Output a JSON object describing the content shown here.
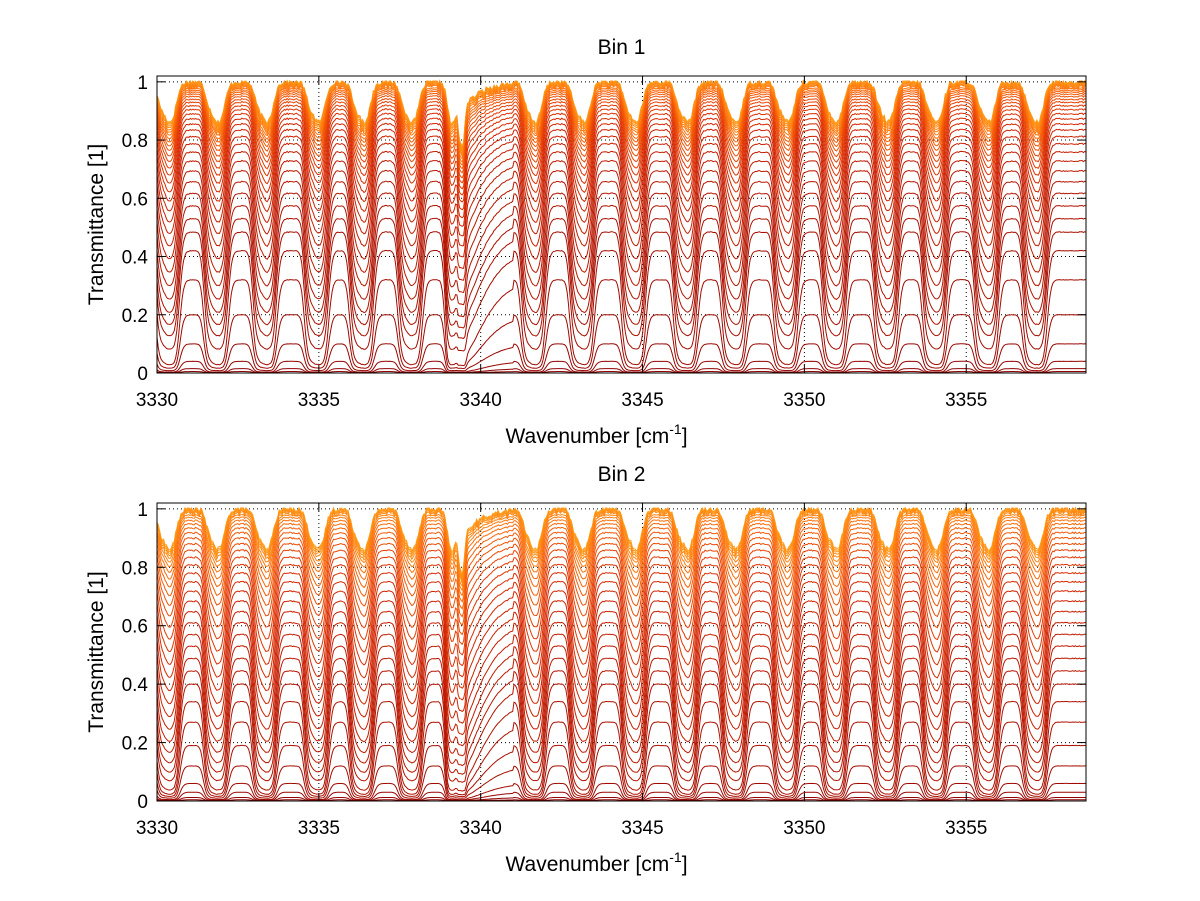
{
  "chart_data": [
    {
      "type": "line",
      "title": "Bin 1",
      "xlabel": "Wavenumber [cm",
      "xlabel_sup": "-1",
      "xlabel_tail": "]",
      "ylabel": "Transmittance [1]",
      "xlim": [
        3330,
        3358.7
      ],
      "ylim": [
        0,
        1.02
      ],
      "xticks": [
        "3330",
        "3335",
        "3340",
        "3345",
        "3350",
        "3355"
      ],
      "xtick_values": [
        3330,
        3335,
        3340,
        3345,
        3350,
        3355
      ],
      "yticks": [
        "0",
        "0.2",
        "0.4",
        "0.6",
        "0.8",
        "1"
      ],
      "ytick_values": [
        0,
        0.2,
        0.4,
        0.6,
        0.8,
        1
      ],
      "grid": true,
      "line_positions": [
        3330.4,
        3331.9,
        3333.4,
        3335.0,
        3336.4,
        3337.9,
        3339.4,
        3341.7,
        3343.2,
        3344.8,
        3346.4,
        3347.9,
        3349.5,
        3351.0,
        3352.6,
        3354.1,
        3355.7,
        3357.2
      ],
      "series_continuum": [
        1.0,
        0.998,
        0.996,
        0.993,
        0.99,
        0.986,
        0.982,
        0.977,
        0.971,
        0.965,
        0.958,
        0.95,
        0.94,
        0.93,
        0.918,
        0.905,
        0.89,
        0.873,
        0.855,
        0.835,
        0.812,
        0.787,
        0.759,
        0.728,
        0.694,
        0.657,
        0.617,
        0.574,
        0.53,
        0.484,
        0.42,
        0.32,
        0.2,
        0.1,
        0.04,
        0.015,
        0.005
      ],
      "series_colors": [
        "#ffa020",
        "#ff9a1c",
        "#ff9418",
        "#ff8e14",
        "#ff8812",
        "#ff8210",
        "#ff7a0e",
        "#ff720c",
        "#fc6a0a",
        "#f86208",
        "#f45a06",
        "#f05205",
        "#ec4a04",
        "#e84203",
        "#e43a02",
        "#e03402",
        "#dc2e01",
        "#d82a01",
        "#d42600",
        "#d02200",
        "#cc2000",
        "#c81e00",
        "#c41c00",
        "#c01a00",
        "#bc1800",
        "#b81600",
        "#b41400",
        "#b01200",
        "#ac1000",
        "#a80e00",
        "#a40c00",
        "#a00a00",
        "#9c0800",
        "#980600",
        "#940400",
        "#900200",
        "#8c0000"
      ]
    },
    {
      "type": "line",
      "title": "Bin 2",
      "xlabel": "Wavenumber [cm",
      "xlabel_sup": "-1",
      "xlabel_tail": "]",
      "ylabel": "Transmittance [1]",
      "xlim": [
        3330,
        3358.7
      ],
      "ylim": [
        0,
        1.02
      ],
      "xticks": [
        "3330",
        "3335",
        "3340",
        "3345",
        "3350",
        "3355"
      ],
      "xtick_values": [
        3330,
        3335,
        3340,
        3345,
        3350,
        3355
      ],
      "yticks": [
        "0",
        "0.2",
        "0.4",
        "0.6",
        "0.8",
        "1"
      ],
      "ytick_values": [
        0,
        0.2,
        0.4,
        0.6,
        0.8,
        1
      ],
      "grid": true,
      "line_positions": [
        3330.4,
        3331.9,
        3333.4,
        3335.0,
        3336.4,
        3337.9,
        3339.4,
        3341.7,
        3343.2,
        3344.8,
        3346.4,
        3347.9,
        3349.5,
        3351.0,
        3352.6,
        3354.1,
        3355.7,
        3357.2
      ],
      "series_continuum": [
        1.0,
        0.997,
        0.994,
        0.99,
        0.985,
        0.978,
        0.97,
        0.96,
        0.948,
        0.934,
        0.918,
        0.9,
        0.88,
        0.858,
        0.834,
        0.808,
        0.78,
        0.75,
        0.718,
        0.684,
        0.648,
        0.61,
        0.57,
        0.53,
        0.488,
        0.445,
        0.4,
        0.34,
        0.27,
        0.19,
        0.12,
        0.06,
        0.03,
        0.012,
        0.004
      ],
      "series_colors": [
        "#ffa020",
        "#ff9a1c",
        "#ff9418",
        "#ff8e14",
        "#ff8812",
        "#ff8210",
        "#ff7a0e",
        "#ff720c",
        "#fc6a0a",
        "#f86208",
        "#f45a06",
        "#f05205",
        "#ec4a04",
        "#e84203",
        "#e43a02",
        "#e03402",
        "#dc2e01",
        "#d82a01",
        "#d42600",
        "#d02200",
        "#cc2000",
        "#c81e00",
        "#c41c00",
        "#c01a00",
        "#bc1800",
        "#b81600",
        "#b41400",
        "#b01200",
        "#ac1000",
        "#a80e00",
        "#a40c00",
        "#a00a00",
        "#980600",
        "#920300",
        "#8c0000"
      ]
    }
  ]
}
